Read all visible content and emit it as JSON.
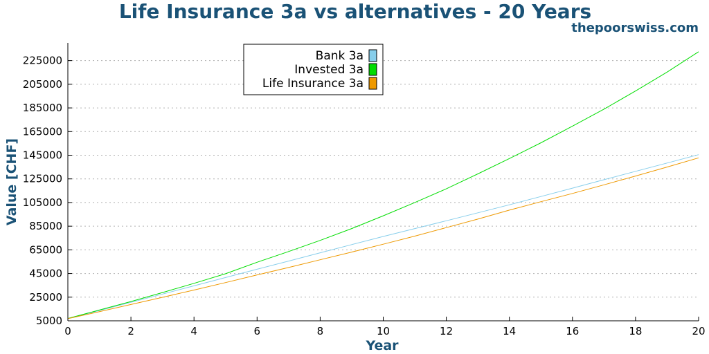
{
  "chart_data": {
    "type": "line",
    "title": "Life Insurance  3a vs alternatives - 20 Years",
    "watermark": "thepoorswiss.com",
    "xlabel": "Year",
    "ylabel": "Value [CHF]",
    "xlim": [
      0,
      20
    ],
    "ylim": [
      5000,
      240000
    ],
    "xticks": [
      0,
      2,
      4,
      6,
      8,
      10,
      12,
      14,
      16,
      18,
      20
    ],
    "yticks": [
      5000,
      25000,
      45000,
      65000,
      85000,
      105000,
      125000,
      145000,
      165000,
      185000,
      205000,
      225000
    ],
    "grid": "horizontal-dotted",
    "legend_position": "top-center",
    "x": [
      0,
      1,
      2,
      3,
      4,
      5,
      6,
      7,
      8,
      9,
      10,
      11,
      12,
      13,
      14,
      15,
      16,
      17,
      18,
      19,
      20
    ],
    "series": [
      {
        "name": "Bank 3a",
        "color": "#87ceeb",
        "values": [
          6800,
          13700,
          20600,
          27600,
          34600,
          41600,
          48600,
          55500,
          62500,
          69400,
          76300,
          83000,
          89600,
          96300,
          103100,
          110100,
          117200,
          124300,
          131400,
          138400,
          145500
        ]
      },
      {
        "name": "Invested 3a",
        "color": "#00dd00",
        "values": [
          7000,
          14100,
          21300,
          28900,
          36700,
          44800,
          54500,
          63600,
          73000,
          83000,
          93800,
          105000,
          116600,
          129200,
          142200,
          155500,
          169600,
          184000,
          199300,
          215300,
          232500
        ]
      },
      {
        "name": "Life Insurance 3a",
        "color": "#ee9900",
        "values": [
          6800,
          12700,
          18800,
          24900,
          31000,
          37300,
          43800,
          50100,
          56600,
          63100,
          69800,
          76600,
          83800,
          91000,
          98600,
          105700,
          112700,
          120000,
          127400,
          135000,
          142800
        ]
      }
    ]
  }
}
